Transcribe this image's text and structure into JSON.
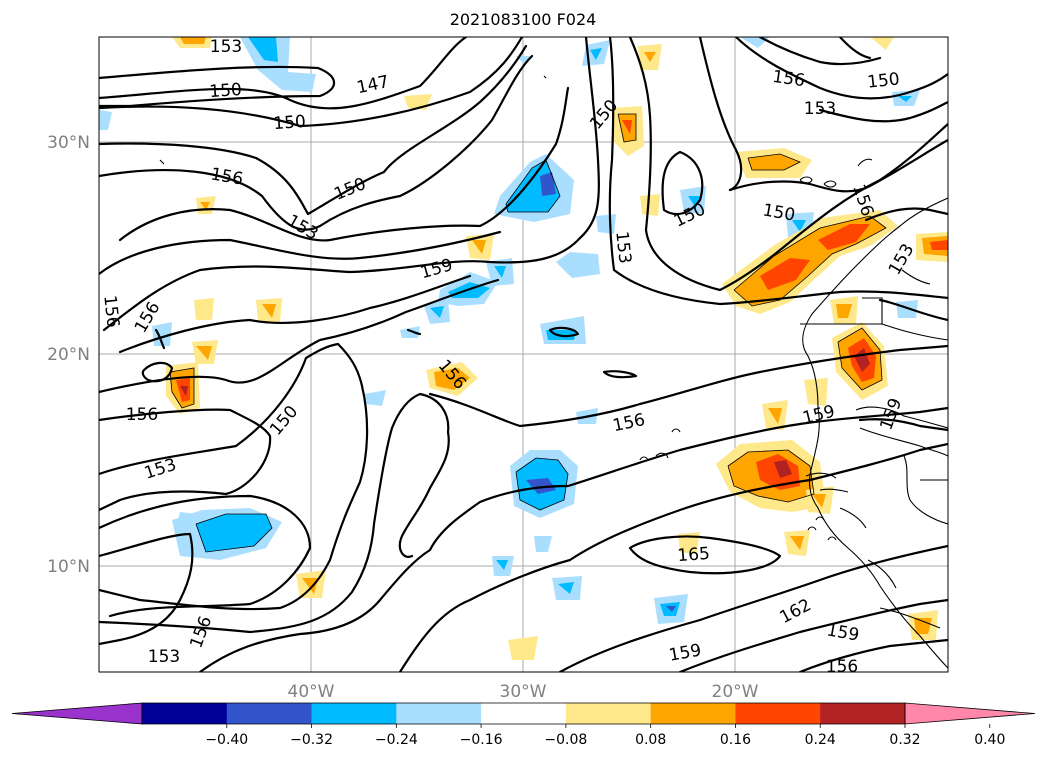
{
  "title": "2021083100 F024",
  "map": {
    "lon_range": [
      -50,
      -10
    ],
    "lat_range": [
      5,
      35
    ],
    "lat_ticks": [
      {
        "lat": 30,
        "label": "30°N"
      },
      {
        "lat": 20,
        "label": "20°N"
      },
      {
        "lat": 10,
        "label": "10°N"
      }
    ],
    "lon_ticks": [
      {
        "lon": -40,
        "label": "40°W"
      },
      {
        "lon": -30,
        "label": "30°W"
      },
      {
        "lon": -20,
        "label": "20°W"
      }
    ],
    "gridlines": true
  },
  "colorbar": {
    "colors": [
      "#9933cc",
      "#000099",
      "#3355cc",
      "#00bbff",
      "#aadeff",
      "#ffffff",
      "#ffe88a",
      "#ffa500",
      "#ff4500",
      "#b22222",
      "#ff88aa"
    ],
    "extend": "both",
    "labels": [
      "−0.40",
      "−0.32",
      "−0.24",
      "−0.16",
      "−0.08",
      "0.08",
      "0.16",
      "0.24",
      "0.32",
      "0.40"
    ]
  },
  "contour_labels": [
    "153",
    "150",
    "147",
    "150",
    "156",
    "150",
    "153",
    "150",
    "156",
    "150",
    "150",
    "156",
    "153",
    "150",
    "156",
    "159",
    "153",
    "153",
    "156",
    "156",
    "156",
    "150",
    "156",
    "153",
    "159",
    "159",
    "165",
    "162",
    "159",
    "156",
    "153",
    "156",
    "159",
    "159"
  ]
}
